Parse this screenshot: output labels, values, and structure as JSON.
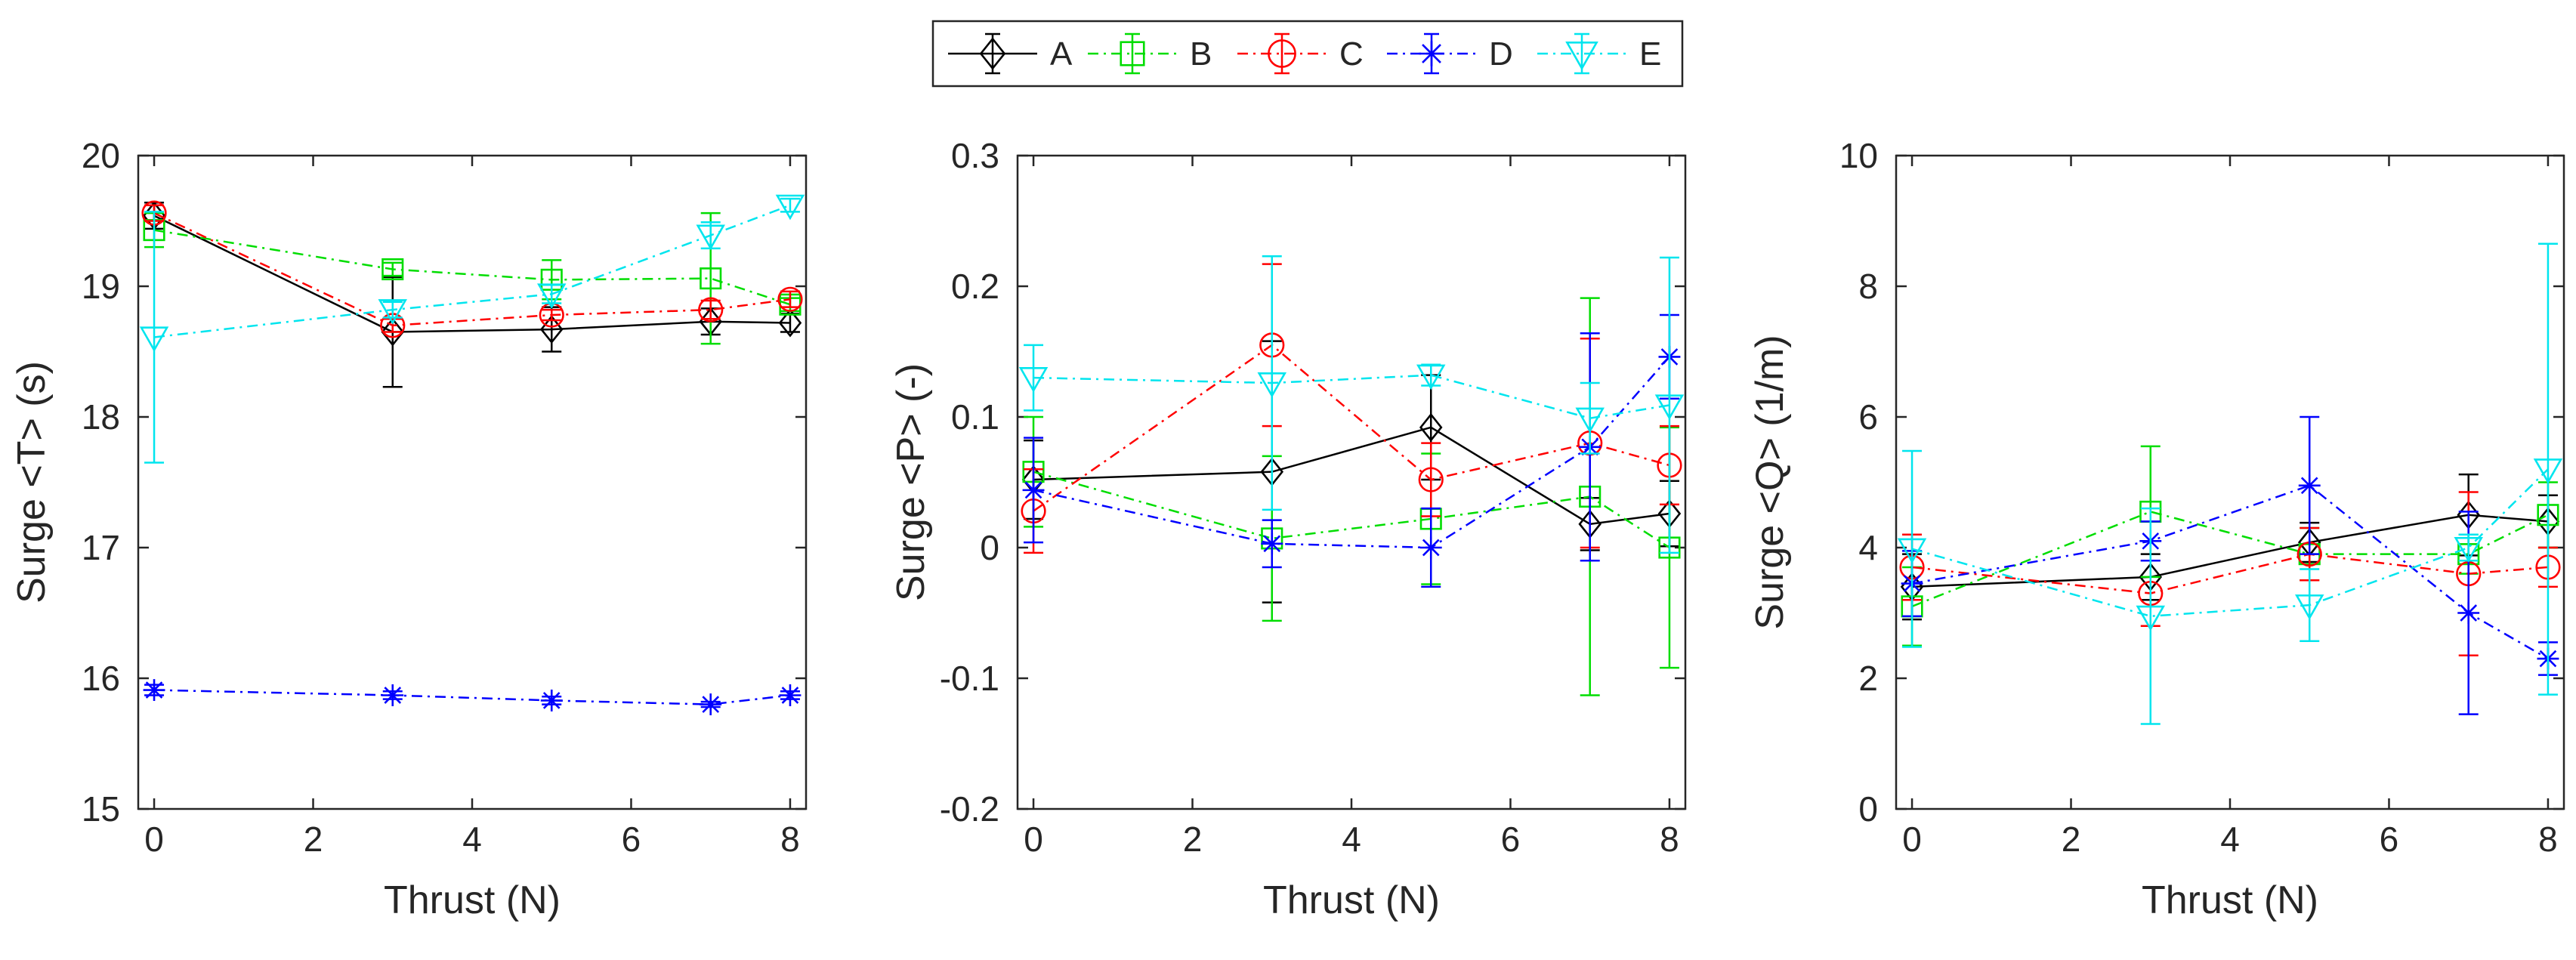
{
  "legend": {
    "entries": [
      {
        "label": "A",
        "color": "#000000",
        "marker": "diamond",
        "dash": "solid"
      },
      {
        "label": "B",
        "color": "#00dd00",
        "marker": "square",
        "dash": "dashdot"
      },
      {
        "label": "C",
        "color": "#ff0000",
        "marker": "circle",
        "dash": "dashdot"
      },
      {
        "label": "D",
        "color": "#0000ff",
        "marker": "asterisk",
        "dash": "dashdot"
      },
      {
        "label": "E",
        "color": "#00e5ee",
        "marker": "triangle-down",
        "dash": "dashdot"
      }
    ]
  },
  "chart_data": [
    {
      "type": "line",
      "title": "",
      "xlabel": "Thrust (N)",
      "ylabel": "Surge <T> (s)",
      "xlim": [
        -0.2,
        8.2
      ],
      "ylim": [
        15,
        20
      ],
      "xticks": [
        0,
        2,
        4,
        6,
        8
      ],
      "yticks": [
        15,
        16,
        17,
        18,
        19,
        20
      ],
      "xtick_labels": [
        "0",
        "2",
        "4",
        "6",
        "8"
      ],
      "ytick_labels": [
        "15",
        "16",
        "17",
        "18",
        "19",
        "20"
      ],
      "series": [
        {
          "name": "A",
          "x": [
            0,
            3,
            5,
            7,
            8
          ],
          "y": [
            19.54,
            18.65,
            18.67,
            18.73,
            18.72
          ],
          "err": [
            0.1,
            0.42,
            0.17,
            0.1,
            0.07
          ]
        },
        {
          "name": "B",
          "x": [
            0,
            3,
            5,
            7,
            8
          ],
          "y": [
            19.43,
            19.13,
            19.05,
            19.06,
            18.86
          ],
          "err": [
            0.13,
            0.05,
            0.15,
            0.5,
            0.05
          ]
        },
        {
          "name": "C",
          "x": [
            0,
            3,
            5,
            7,
            8
          ],
          "y": [
            19.56,
            18.7,
            18.78,
            18.82,
            18.9
          ],
          "err": [
            0.06,
            0.05,
            0.04,
            0.07,
            0.06
          ]
        },
        {
          "name": "D",
          "x": [
            0,
            3,
            5,
            7,
            8
          ],
          "y": [
            15.91,
            15.87,
            15.83,
            15.8,
            15.87
          ],
          "err": [
            0.04,
            0.03,
            0.03,
            0.02,
            0.03
          ]
        },
        {
          "name": "E",
          "x": [
            0,
            3,
            5,
            7,
            8
          ],
          "y": [
            18.61,
            18.82,
            18.94,
            19.39,
            19.62
          ],
          "err": [
            0.96,
            0.06,
            0.07,
            0.1,
            0.05
          ]
        }
      ]
    },
    {
      "type": "line",
      "title": "",
      "xlabel": "Thrust (N)",
      "ylabel": "Surge <P> (-)",
      "xlim": [
        -0.2,
        8.2
      ],
      "ylim": [
        -0.2,
        0.3
      ],
      "xticks": [
        0,
        2,
        4,
        6,
        8
      ],
      "yticks": [
        -0.2,
        -0.1,
        0,
        0.1,
        0.2,
        0.3
      ],
      "xtick_labels": [
        "0",
        "2",
        "4",
        "6",
        "8"
      ],
      "ytick_labels": [
        "-0.2",
        "-0.1",
        "0",
        "0.1",
        "0.2",
        "0.3"
      ],
      "series": [
        {
          "name": "A",
          "x": [
            0,
            3,
            5,
            7,
            8
          ],
          "y": [
            0.052,
            0.058,
            0.092,
            0.018,
            0.026
          ],
          "err": [
            0.03,
            0.1,
            0.04,
            0.02,
            0.025
          ]
        },
        {
          "name": "B",
          "x": [
            0,
            3,
            5,
            7,
            8
          ],
          "y": [
            0.058,
            0.007,
            0.022,
            0.039,
            0.0
          ],
          "err": [
            0.042,
            0.063,
            0.05,
            0.152,
            0.092
          ]
        },
        {
          "name": "C",
          "x": [
            0,
            3,
            5,
            7,
            8
          ],
          "y": [
            0.028,
            0.155,
            0.052,
            0.08,
            0.063
          ],
          "err": [
            0.032,
            0.062,
            0.028,
            0.08,
            0.03
          ]
        },
        {
          "name": "D",
          "x": [
            0,
            3,
            5,
            7,
            8
          ],
          "y": [
            0.044,
            0.003,
            0.0,
            0.077,
            0.146
          ],
          "err": [
            0.04,
            0.018,
            0.03,
            0.087,
            0.032
          ]
        },
        {
          "name": "E",
          "x": [
            0,
            3,
            5,
            7,
            8
          ],
          "y": [
            0.13,
            0.126,
            0.132,
            0.099,
            0.109
          ],
          "err": [
            0.025,
            0.097,
            0.008,
            0.027,
            0.113
          ]
        }
      ]
    },
    {
      "type": "line",
      "title": "",
      "xlabel": "Thrust (N)",
      "ylabel": "Surge <Q> (1/m)",
      "xlim": [
        -0.2,
        8.2
      ],
      "ylim": [
        0,
        10
      ],
      "xticks": [
        0,
        2,
        4,
        6,
        8
      ],
      "yticks": [
        0,
        2,
        4,
        6,
        8,
        10
      ],
      "xtick_labels": [
        "0",
        "2",
        "4",
        "6",
        "8"
      ],
      "ytick_labels": [
        "0",
        "2",
        "4",
        "6",
        "8",
        "10"
      ],
      "series": [
        {
          "name": "A",
          "x": [
            0,
            3,
            5,
            7,
            8
          ],
          "y": [
            3.4,
            3.55,
            4.08,
            4.5,
            4.4
          ],
          "err": [
            0.5,
            0.35,
            0.3,
            0.62,
            0.4
          ]
        },
        {
          "name": "B",
          "x": [
            0,
            3,
            5,
            7,
            8
          ],
          "y": [
            3.1,
            4.55,
            3.9,
            3.9,
            4.5
          ],
          "err": [
            0.6,
            1.0,
            0.4,
            0.3,
            0.5
          ]
        },
        {
          "name": "C",
          "x": [
            0,
            3,
            5,
            7,
            8
          ],
          "y": [
            3.7,
            3.3,
            3.9,
            3.6,
            3.7
          ],
          "err": [
            0.5,
            0.5,
            0.4,
            1.25,
            0.3
          ]
        },
        {
          "name": "D",
          "x": [
            0,
            3,
            5,
            7,
            8
          ],
          "y": [
            3.45,
            4.1,
            4.95,
            3.0,
            2.3
          ],
          "err": [
            0.5,
            0.3,
            1.05,
            1.55,
            0.25
          ]
        },
        {
          "name": "E",
          "x": [
            0,
            3,
            5,
            7,
            8
          ],
          "y": [
            3.98,
            2.95,
            3.12,
            4.0,
            5.2
          ],
          "err": [
            1.5,
            1.65,
            0.55,
            0.2,
            3.45
          ]
        }
      ]
    }
  ]
}
